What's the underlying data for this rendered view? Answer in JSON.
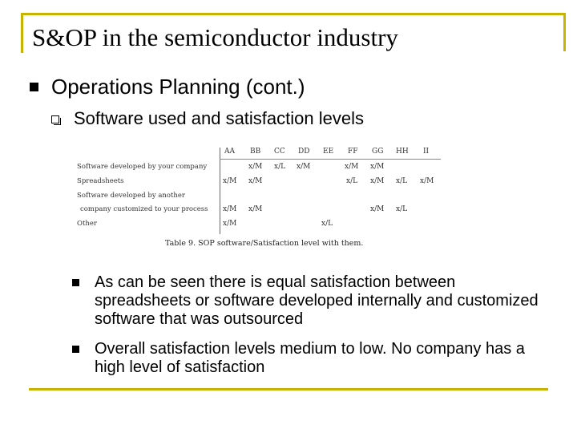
{
  "slide": {
    "title": "S&OP in the semiconductor industry",
    "bullet_1": "Operations Planning (cont.)",
    "bullet_1_1": "Software used and satisfaction levels",
    "bullet_1_1_1": "As can be seen there is equal satisfaction between spreadsheets or software developed internally and customized software that was outsourced",
    "bullet_1_1_2": "Overall satisfaction levels medium to low.  No company has a high level of satisfaction"
  },
  "table": {
    "columns": [
      "AA",
      "BB",
      "CC",
      "DD",
      "EE",
      "FF",
      "GG",
      "HH",
      "II"
    ],
    "rows": [
      {
        "label": "Software developed by your company",
        "cells": [
          "",
          "x/M",
          "x/L",
          "x/M",
          "",
          "x/M",
          "x/M",
          "",
          ""
        ]
      },
      {
        "label": "Spreadsheets",
        "cells": [
          "x/M",
          "x/M",
          "",
          "",
          "",
          "x/L",
          "x/M",
          "x/L",
          "x/M"
        ]
      },
      {
        "label": "Software developed by another",
        "cells": [
          "",
          "",
          "",
          "",
          "",
          "",
          "",
          "",
          ""
        ]
      },
      {
        "label": "company customized to your process",
        "cells": [
          "x/M",
          "x/M",
          "",
          "",
          "",
          "",
          "x/M",
          "x/L",
          ""
        ]
      },
      {
        "label": "Other",
        "cells": [
          "x/M",
          "",
          "",
          "",
          "x/L",
          "",
          "",
          "",
          ""
        ]
      }
    ],
    "caption": "Table 9.  SOP software/Satisfaction level with them."
  }
}
